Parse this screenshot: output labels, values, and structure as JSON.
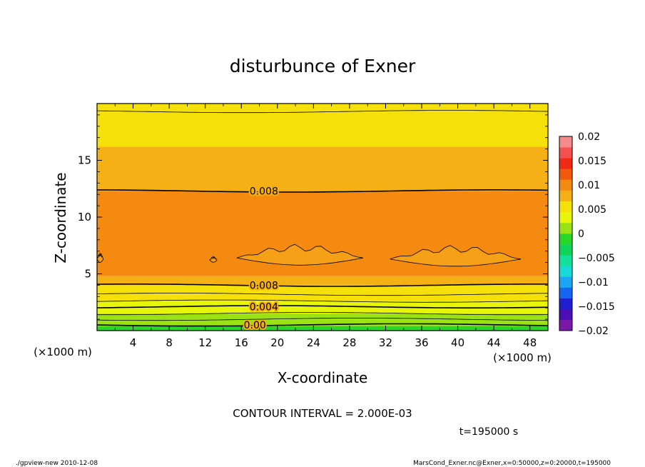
{
  "chart_data": {
    "type": "heatmap",
    "title": "disturbunce of Exner",
    "xlabel": "X-coordinate",
    "ylabel": "Z-coordinate",
    "x_unit_left": "(×1000 m)",
    "x_unit_right": "(×1000 m)",
    "xlim": [
      0,
      50
    ],
    "ylim": [
      0,
      20
    ],
    "xticks": [
      4,
      8,
      12,
      16,
      20,
      24,
      28,
      32,
      36,
      40,
      44,
      48
    ],
    "yticks": [
      5,
      10,
      15
    ],
    "contour_labels": [
      {
        "text": "0.008",
        "x": 18.5,
        "z": 12.3
      },
      {
        "text": "0.008",
        "x": 18.5,
        "z": 4.0
      },
      {
        "text": "0.004",
        "x": 18.5,
        "z": 2.1
      },
      {
        "text": "0.00",
        "x": 17.5,
        "z": 0.5
      }
    ],
    "bands": [
      {
        "z0": 0.0,
        "z1": 0.4,
        "value": -0.002
      },
      {
        "z0": 0.4,
        "z1": 1.0,
        "value": 0.0
      },
      {
        "z0": 1.0,
        "z1": 1.5,
        "value": 0.002
      },
      {
        "z0": 1.5,
        "z1": 2.1,
        "value": 0.003
      },
      {
        "z0": 2.1,
        "z1": 2.6,
        "value": 0.004
      },
      {
        "z0": 2.6,
        "z1": 3.2,
        "value": 0.005
      },
      {
        "z0": 3.2,
        "z1": 4.0,
        "value": 0.006
      },
      {
        "z0": 4.0,
        "z1": 4.8,
        "value": 0.008
      },
      {
        "z0": 4.8,
        "z1": 8.9,
        "value": 0.01
      },
      {
        "z0": 8.9,
        "z1": 12.3,
        "value": 0.009
      },
      {
        "z0": 12.3,
        "z1": 16.2,
        "value": 0.007
      },
      {
        "z0": 16.2,
        "z1": 19.3,
        "value": 0.006
      },
      {
        "z0": 19.3,
        "z1": 20.0,
        "value": 0.005
      }
    ],
    "contour_lines": [
      0.5,
      1.0,
      1.5,
      2.1,
      2.6,
      3.2,
      4.0,
      12.3,
      19.3
    ],
    "blobs": [
      {
        "x0": 12.5,
        "x1": 13.3,
        "zc": 6.2,
        "h": 0.25
      },
      {
        "x0": 15.5,
        "x1": 29.5,
        "zc": 6.4,
        "h": 0.9
      },
      {
        "x0": 32.5,
        "x1": 47.0,
        "zc": 6.3,
        "h": 0.9
      },
      {
        "x0": 0.0,
        "x1": 0.7,
        "zc": 6.3,
        "h": 0.4
      }
    ],
    "colorbar": {
      "min": -0.02,
      "max": 0.02,
      "ticks": [
        "0.02",
        "0.015",
        "0.01",
        "0.005",
        "0",
        "−0.005",
        "−0.01",
        "−0.015",
        "−0.02"
      ],
      "colors": [
        "#7a19a8",
        "#4b0fb4",
        "#1f1fcf",
        "#1466f0",
        "#1aa6f0",
        "#19d9d6",
        "#13e09a",
        "#10d45a",
        "#28d828",
        "#9be214",
        "#e6f50a",
        "#f5e00a",
        "#f5b016",
        "#f58a10",
        "#f05a0a",
        "#f02a14",
        "#f55050",
        "#f58a8a"
      ]
    },
    "annotation": "CONTOUR INTERVAL = 2.000E-03",
    "time_label": "t=195000 s"
  },
  "footer": {
    "left": "./gpview-new  2010-12-08",
    "right": "MarsCond_Exner.nc@Exner,x=0:50000,z=0:20000,t=195000"
  }
}
